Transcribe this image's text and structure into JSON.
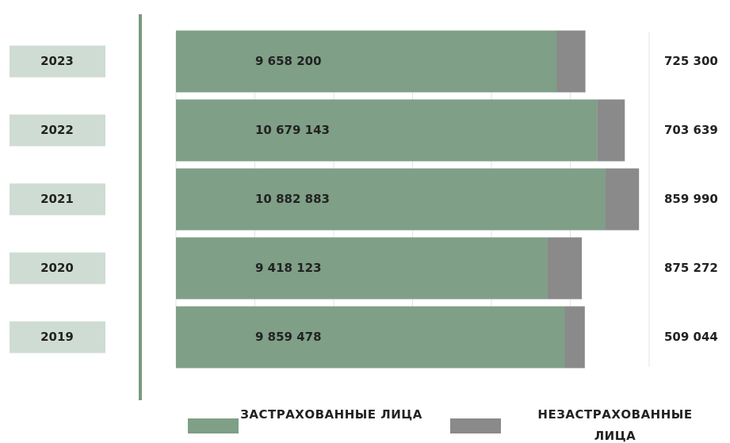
{
  "chart_data": {
    "type": "stacked-bar-horizontal",
    "categories": [
      "2023",
      "2022",
      "2021",
      "2020",
      "2019"
    ],
    "series": [
      {
        "name": "ЗАСТРАХОВАННЫЕ ЛИЦА",
        "color": "#7f9f87",
        "values": [
          9658200,
          10679143,
          10882883,
          9418123,
          9859478
        ],
        "value_labels": [
          "9 658 200",
          "10 679 143",
          "10 882 883",
          "9 418 123",
          "9 859 478"
        ]
      },
      {
        "name": "НЕЗАСТРАХОВАННЫЕ ЛИЦА",
        "color": "#8a8a8a",
        "values": [
          725300,
          703639,
          859990,
          875272,
          509044
        ],
        "value_labels": [
          "725 300",
          "703 639",
          "859 990",
          "875 272",
          "509 044"
        ]
      }
    ],
    "xlim": [
      0,
      12000000
    ],
    "xticks": [
      0,
      2000000,
      4000000,
      6000000,
      8000000,
      10000000,
      12000000
    ],
    "grid": true
  }
}
